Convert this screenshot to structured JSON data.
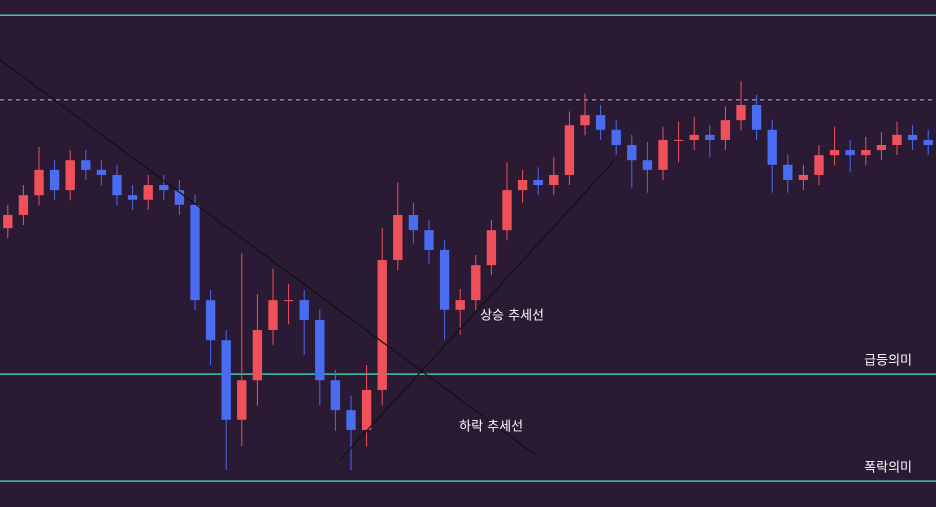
{
  "chart_data": {
    "type": "candlestick",
    "up_color": "#f0505a",
    "down_color": "#4a6cf0",
    "level_color": "#3cc8b0",
    "trend_color": "#111111",
    "ylim": [
      0,
      100
    ],
    "open": [
      55.0,
      57.6,
      61.5,
      66.5,
      62.5,
      68.4,
      66.5,
      65.5,
      61.5,
      60.6,
      63.5,
      62.5,
      59.6,
      40.8,
      32.9,
      17.2,
      25.0,
      34.9,
      40.8,
      40.8,
      36.9,
      25.0,
      19.1,
      15.2,
      23.1,
      48.7,
      57.6,
      54.6,
      50.7,
      38.9,
      40.8,
      47.7,
      54.6,
      62.5,
      64.5,
      63.5,
      65.5,
      75.3,
      77.3,
      74.4,
      71.4,
      68.4,
      66.5,
      72.4,
      72.4,
      73.4,
      72.4,
      76.3,
      79.3,
      74.4,
      67.5,
      64.5,
      65.5,
      69.4,
      70.4,
      69.4,
      70.4,
      71.4,
      73.4,
      72.4
    ],
    "high": [
      59.6,
      63.5,
      71.0,
      68.5,
      70.4,
      70.4,
      68.5,
      67.5,
      63.5,
      65.5,
      65.5,
      64.5,
      61.6,
      42.8,
      34.9,
      50.0,
      42.0,
      47.0,
      44.0,
      42.8,
      38.9,
      27.0,
      22.0,
      28.0,
      55.0,
      64.0,
      60.0,
      56.6,
      52.7,
      43.0,
      49.7,
      56.6,
      68.0,
      66.5,
      67.0,
      69.0,
      78.0,
      81.5,
      79.3,
      76.4,
      73.4,
      72.0,
      75.0,
      76.0,
      77.0,
      75.4,
      79.0,
      84.0,
      81.3,
      76.4,
      69.5,
      67.5,
      71.4,
      75.0,
      72.4,
      73.0,
      74.0,
      76.0,
      75.4,
      74.4
    ],
    "low": [
      53.0,
      55.6,
      59.5,
      60.5,
      60.5,
      64.5,
      63.5,
      59.5,
      58.6,
      58.6,
      60.5,
      57.6,
      38.8,
      28.0,
      7.3,
      12.0,
      20.0,
      32.0,
      36.0,
      30.0,
      20.0,
      15.0,
      7.3,
      12.0,
      20.0,
      46.7,
      52.0,
      48.0,
      33.0,
      34.0,
      38.8,
      45.7,
      52.6,
      60.0,
      61.5,
      61.5,
      63.5,
      73.3,
      72.4,
      69.4,
      63.0,
      62.0,
      64.5,
      68.0,
      70.4,
      69.0,
      70.4,
      74.3,
      72.4,
      62.0,
      62.0,
      62.5,
      63.5,
      67.4,
      66.0,
      67.4,
      68.4,
      69.4,
      70.4,
      69.4
    ],
    "close": [
      57.6,
      61.5,
      66.5,
      62.5,
      68.4,
      66.5,
      65.5,
      61.5,
      60.6,
      63.5,
      62.5,
      59.6,
      40.8,
      32.9,
      17.2,
      25.0,
      34.9,
      40.8,
      40.8,
      36.9,
      25.0,
      19.1,
      15.2,
      23.1,
      48.7,
      57.6,
      54.6,
      50.7,
      38.9,
      40.8,
      47.7,
      54.6,
      62.5,
      64.5,
      63.5,
      65.5,
      75.3,
      77.3,
      74.4,
      71.4,
      68.4,
      66.5,
      72.4,
      72.4,
      73.4,
      72.4,
      76.3,
      79.3,
      74.4,
      67.5,
      64.5,
      65.5,
      69.4,
      70.4,
      69.4,
      70.4,
      71.4,
      73.4,
      72.4,
      71.4
    ],
    "levels": [
      {
        "value": 97,
        "style": "solid"
      },
      {
        "value": 80.3,
        "style": "dashed"
      },
      {
        "value": 26.2,
        "style": "solid",
        "label": "급등의미"
      },
      {
        "value": 5.1,
        "style": "solid",
        "label": "폭락의미"
      }
    ],
    "trendlines": [
      {
        "label": "하락 추세선",
        "x": [
          0,
          34.3
        ],
        "y": [
          88.2,
          10.3
        ]
      },
      {
        "label": "상승 추세선",
        "x": [
          21.8,
          39.4
        ],
        "y": [
          9.3,
          68.4
        ]
      }
    ]
  }
}
